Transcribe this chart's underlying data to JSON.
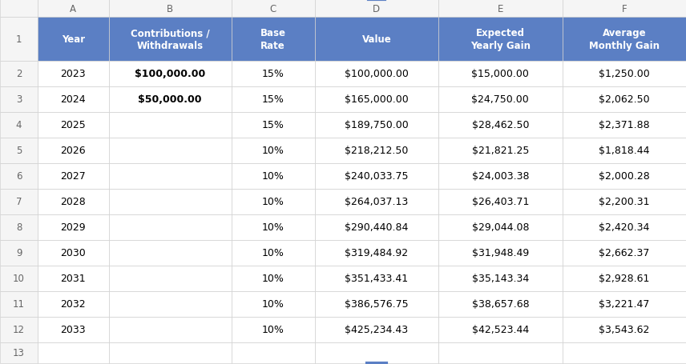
{
  "header_bg": "#5b7fc4",
  "header_text": "#ffffff",
  "cell_bg": "#ffffff",
  "cell_text": "#000000",
  "grid_color": "#d0d0d0",
  "row_num_bg": "#f5f5f5",
  "col_letter_bg": "#f5f5f5",
  "col_letter_text": "#666666",
  "rows": [
    {
      "year": "2023",
      "contrib": "$100,000.00",
      "contrib_bold": true,
      "rate": "15%",
      "value": "$100,000.00",
      "yearly": "$15,000.00",
      "monthly": "$1,250.00"
    },
    {
      "year": "2024",
      "contrib": "$50,000.00",
      "contrib_bold": true,
      "rate": "15%",
      "value": "$165,000.00",
      "yearly": "$24,750.00",
      "monthly": "$2,062.50"
    },
    {
      "year": "2025",
      "contrib": "",
      "contrib_bold": false,
      "rate": "15%",
      "value": "$189,750.00",
      "yearly": "$28,462.50",
      "monthly": "$2,371.88"
    },
    {
      "year": "2026",
      "contrib": "",
      "contrib_bold": false,
      "rate": "10%",
      "value": "$218,212.50",
      "yearly": "$21,821.25",
      "monthly": "$1,818.44"
    },
    {
      "year": "2027",
      "contrib": "",
      "contrib_bold": false,
      "rate": "10%",
      "value": "$240,033.75",
      "yearly": "$24,003.38",
      "monthly": "$2,000.28"
    },
    {
      "year": "2028",
      "contrib": "",
      "contrib_bold": false,
      "rate": "10%",
      "value": "$264,037.13",
      "yearly": "$26,403.71",
      "monthly": "$2,200.31"
    },
    {
      "year": "2029",
      "contrib": "",
      "contrib_bold": false,
      "rate": "10%",
      "value": "$290,440.84",
      "yearly": "$29,044.08",
      "monthly": "$2,420.34"
    },
    {
      "year": "2030",
      "contrib": "",
      "contrib_bold": false,
      "rate": "10%",
      "value": "$319,484.92",
      "yearly": "$31,948.49",
      "monthly": "$2,662.37"
    },
    {
      "year": "2031",
      "contrib": "",
      "contrib_bold": false,
      "rate": "10%",
      "value": "$351,433.41",
      "yearly": "$35,143.34",
      "monthly": "$2,928.61"
    },
    {
      "year": "2032",
      "contrib": "",
      "contrib_bold": false,
      "rate": "10%",
      "value": "$386,576.75",
      "yearly": "$38,657.68",
      "monthly": "$3,221.47"
    },
    {
      "year": "2033",
      "contrib": "",
      "contrib_bold": false,
      "rate": "10%",
      "value": "$425,234.43",
      "yearly": "$42,523.44",
      "monthly": "$3,543.62"
    }
  ],
  "headers_line1": [
    "",
    "Contributions /",
    "Base",
    "",
    "Expected",
    "Average"
  ],
  "headers_line2": [
    "Year",
    "Withdrawals",
    "Rate",
    "Value",
    "Yearly Gain",
    "Monthly Gain"
  ],
  "col_letters": [
    "A",
    "B",
    "C",
    "D",
    "E",
    "F"
  ]
}
